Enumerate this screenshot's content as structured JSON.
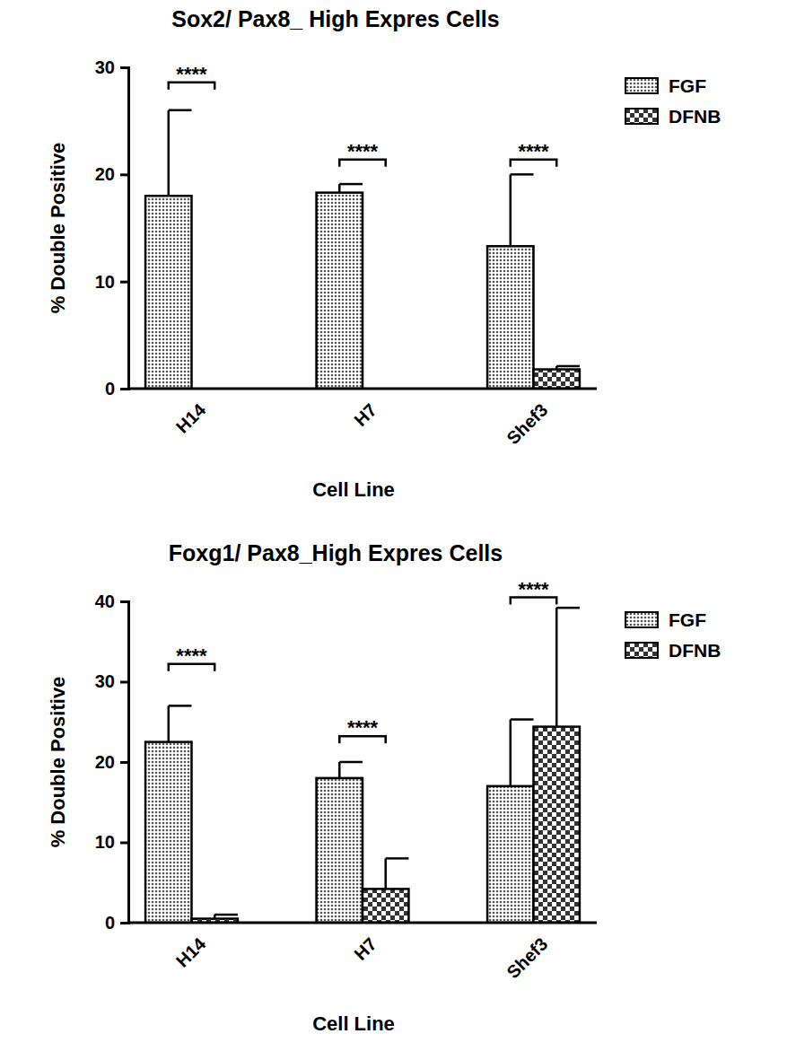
{
  "chart_data": [
    {
      "type": "bar",
      "title": "Sox2/ Pax8_ High Expres Cells",
      "x_label": "Cell Line",
      "y_label": "% Double Positive",
      "categories": [
        "H14",
        "H7",
        "Shef3"
      ],
      "series": [
        {
          "name": "FGF",
          "color": "#555555",
          "values": [
            18,
            18.3,
            13.3
          ],
          "errors": [
            8,
            0.8,
            6.7
          ]
        },
        {
          "name": "DFNB",
          "color": "#333333",
          "values": [
            0,
            0,
            1.8
          ],
          "errors": [
            0,
            0,
            0.3
          ]
        }
      ],
      "ylim": [
        0,
        30
      ],
      "yticks": [
        0,
        10,
        20,
        30
      ],
      "legend": "right",
      "annotations": [
        {
          "text": "****",
          "category": "H14",
          "y": 28.6
        },
        {
          "text": "****",
          "category": "H7",
          "y": 21.4
        },
        {
          "text": "****",
          "category": "Shef3",
          "y": 21.4
        }
      ]
    },
    {
      "type": "bar",
      "title": "Foxg1/ Pax8_High Expres Cells",
      "x_label": "Cell Line",
      "y_label": "% Double Positive",
      "categories": [
        "H14",
        "H7",
        "Shef3"
      ],
      "series": [
        {
          "name": "FGF",
          "color": "#555555",
          "values": [
            22.5,
            18,
            17
          ],
          "errors": [
            4.5,
            2,
            8.3
          ]
        },
        {
          "name": "DFNB",
          "color": "#333333",
          "values": [
            0.5,
            4.2,
            24.4
          ],
          "errors": [
            0.5,
            3.8,
            14.8
          ]
        }
      ],
      "ylim": [
        0,
        40
      ],
      "yticks": [
        0,
        10,
        20,
        30,
        40
      ],
      "legend": "right",
      "annotations": [
        {
          "text": "****",
          "category": "H14",
          "y": 32.2
        },
        {
          "text": "****",
          "category": "H7",
          "y": 23.2
        },
        {
          "text": "****",
          "category": "Shef3",
          "y": 40.5
        }
      ]
    }
  ]
}
